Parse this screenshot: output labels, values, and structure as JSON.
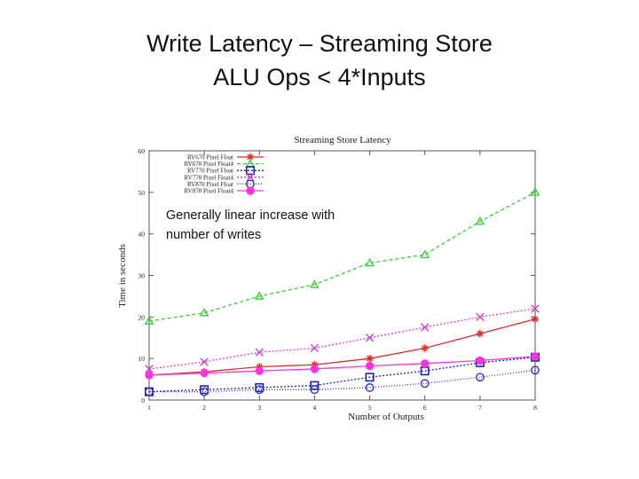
{
  "slide": {
    "title_line1": "Write Latency – Streaming Store",
    "title_line2": "ALU Ops < 4*Inputs"
  },
  "annotation": {
    "line1": "Generally linear increase with",
    "line2": "number of writes"
  },
  "chart_data": {
    "type": "line",
    "title": "Streaming Store Latency",
    "xlabel": "Number of Outputs",
    "ylabel": "Time in seconds",
    "x": [
      1,
      2,
      3,
      4,
      5,
      6,
      7,
      8
    ],
    "xlim": [
      1,
      8
    ],
    "ylim": [
      0,
      60
    ],
    "xticks": [
      "1",
      "2",
      "3",
      "4",
      "5",
      "6",
      "7",
      "8"
    ],
    "yticks": [
      "0",
      "10",
      "20",
      "30",
      "40",
      "50",
      "60"
    ],
    "grid": false,
    "legend_position": "top-left",
    "series": [
      {
        "name": "RV670 Pixel Float",
        "values": [
          6,
          6.8,
          8,
          8.5,
          10,
          12.5,
          16,
          19.5
        ],
        "color": "#d62f2f",
        "marker": "asterisk",
        "dash": ""
      },
      {
        "name": "RV670 Pixel Float4",
        "values": [
          19,
          21,
          25,
          27.8,
          33,
          35,
          43,
          50
        ],
        "color": "#33cc33",
        "marker": "triangle",
        "dash": "4,3"
      },
      {
        "name": "RV770 Pixel Float",
        "values": [
          2,
          2.5,
          3,
          3.5,
          5.5,
          7,
          9,
          10.3
        ],
        "color": "#2222aa",
        "marker": "square",
        "dash": "2,2"
      },
      {
        "name": "RV770 Pixel Float4",
        "values": [
          7.5,
          9.2,
          11.5,
          12.5,
          15,
          17.5,
          20,
          22
        ],
        "color": "#cc44cc",
        "marker": "x",
        "dash": "2,2"
      },
      {
        "name": "RV870 Pixel Float",
        "values": [
          2,
          2,
          2.5,
          2.5,
          3,
          4,
          5.5,
          7.2
        ],
        "color": "#3333cc",
        "marker": "circle",
        "dash": "1,2"
      },
      {
        "name": "RV870 Pixel Float4",
        "values": [
          6,
          6.5,
          7,
          7.5,
          8.2,
          8.8,
          9.5,
          10.5
        ],
        "color": "#ff33dd",
        "marker": "dot",
        "dash": ""
      }
    ]
  }
}
